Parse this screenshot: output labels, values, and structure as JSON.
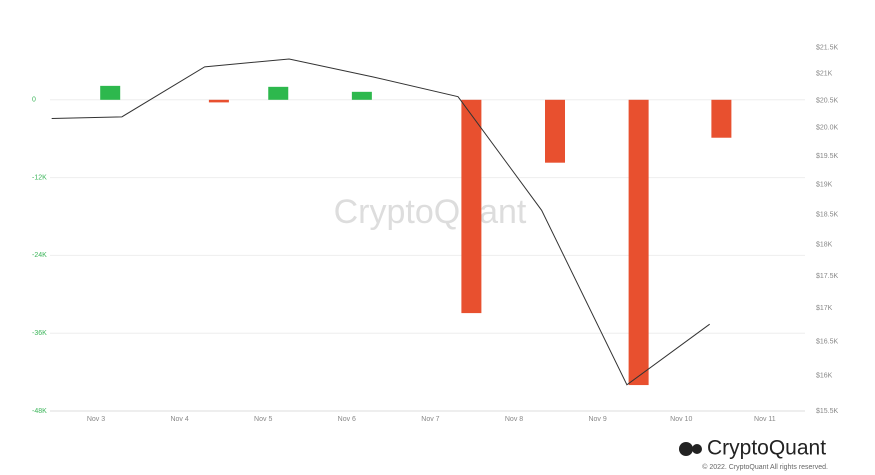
{
  "chart_data": {
    "type": "bar-line",
    "xlim": [
      2.45,
      11.48
    ],
    "xticks": [
      {
        "value": 3,
        "label": "Nov 3"
      },
      {
        "value": 4,
        "label": "Nov 4"
      },
      {
        "value": 5,
        "label": "Nov 5"
      },
      {
        "value": 6,
        "label": "Nov 6"
      },
      {
        "value": 7,
        "label": "Nov 7"
      },
      {
        "value": 8,
        "label": "Nov 8"
      },
      {
        "value": 9,
        "label": "Nov 9"
      },
      {
        "value": 10,
        "label": "Nov 10"
      },
      {
        "value": 11,
        "label": "Nov 11"
      }
    ],
    "ylim": [
      -48000,
      12000
    ],
    "yticks": [
      {
        "value": 0,
        "label": "0"
      },
      {
        "value": -12000,
        "label": "-12K"
      },
      {
        "value": -24000,
        "label": "-24K"
      },
      {
        "value": -36000,
        "label": "-36K"
      },
      {
        "value": -48000,
        "label": "-48K"
      }
    ],
    "y2lim": [
      15500,
      22000
    ],
    "y2log": true,
    "y2ticks": [
      {
        "value": 15500,
        "label": "$15.5K"
      },
      {
        "value": 16000,
        "label": "$16K"
      },
      {
        "value": 16500,
        "label": "$16.5K"
      },
      {
        "value": 17000,
        "label": "$17K"
      },
      {
        "value": 17500,
        "label": "$17.5K"
      },
      {
        "value": 18000,
        "label": "$18K"
      },
      {
        "value": 18500,
        "label": "$18.5K"
      },
      {
        "value": 19000,
        "label": "$19K"
      },
      {
        "value": 19500,
        "label": "$19.5K"
      },
      {
        "value": 20000,
        "label": "$20.0K"
      },
      {
        "value": 20500,
        "label": "$20.5K"
      },
      {
        "value": 21000,
        "label": "$21K"
      },
      {
        "value": 21500,
        "label": "$21.5K"
      }
    ],
    "grid": true,
    "bars": {
      "x": [
        3.17,
        4.47,
        5.18,
        6.18,
        7.49,
        8.49,
        9.49,
        10.48
      ],
      "values": [
        2150,
        -400,
        2000,
        1230,
        -32900,
        -9700,
        -44000,
        -5850
      ],
      "positive_color": "#2db84d",
      "negative_color": "#e8502f"
    },
    "line": {
      "x": [
        2.47,
        3.31,
        4.3,
        5.31,
        6.31,
        7.33,
        8.33,
        9.35,
        10.34
      ],
      "values": [
        20170,
        20200,
        21130,
        21280,
        20940,
        20570,
        18570,
        15870,
        16760
      ],
      "color": "#333333",
      "axis": "y2"
    }
  },
  "watermark": "CryptoQuant",
  "logo_text": "CryptoQuant",
  "copyright": "© 2022. CryptoQuant All rights reserved."
}
